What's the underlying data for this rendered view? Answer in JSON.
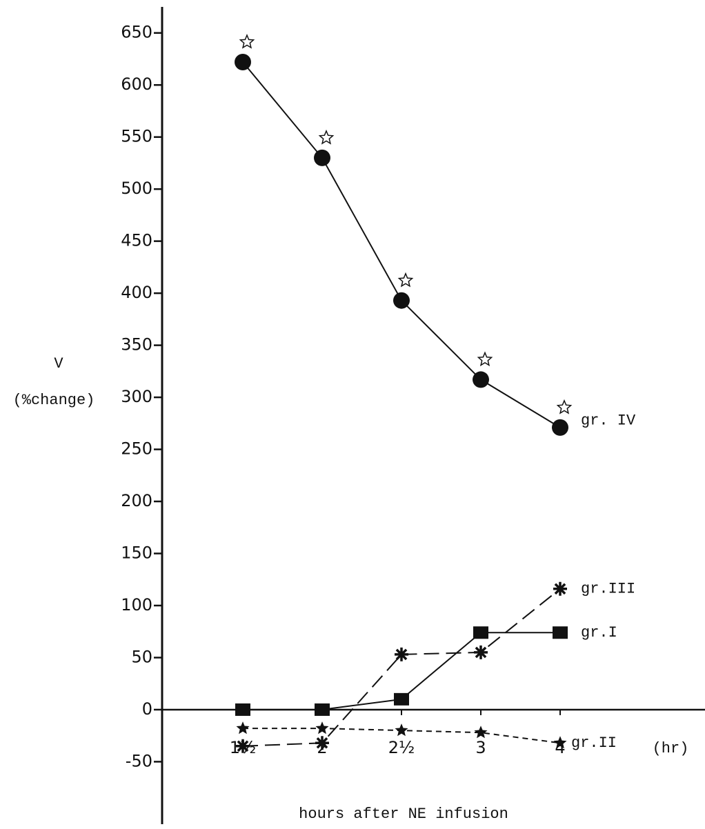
{
  "chart_data": {
    "type": "line",
    "y_label_top": "V",
    "y_label": "(%change)",
    "x_label": "hours after NE infusion",
    "x_unit": "(hr)",
    "categories": [
      "1½",
      "2",
      "2½",
      "3",
      "4"
    ],
    "ylim": [
      -110,
      675
    ],
    "yticks": [
      -50,
      0,
      50,
      100,
      150,
      200,
      250,
      300,
      350,
      400,
      450,
      500,
      550,
      600,
      650
    ],
    "series": [
      {
        "name": "gr. IV",
        "color": "#111111",
        "marker": "circle",
        "dash": "solid",
        "significance": true,
        "values": [
          622,
          530,
          393,
          317,
          271
        ]
      },
      {
        "name": "gr.III",
        "color": "#111111",
        "marker": "asterisk",
        "dash": "longdash",
        "significance": false,
        "values": [
          -35,
          -32,
          53,
          55,
          116
        ]
      },
      {
        "name": "gr.I",
        "color": "#111111",
        "marker": "square",
        "dash": "solid",
        "significance": false,
        "values": [
          0,
          0,
          10,
          74,
          74
        ]
      },
      {
        "name": "gr.II",
        "color": "#111111",
        "marker": "star",
        "dash": "dashed",
        "significance": false,
        "values": [
          -18,
          -18,
          -20,
          -22,
          -32
        ]
      }
    ]
  }
}
